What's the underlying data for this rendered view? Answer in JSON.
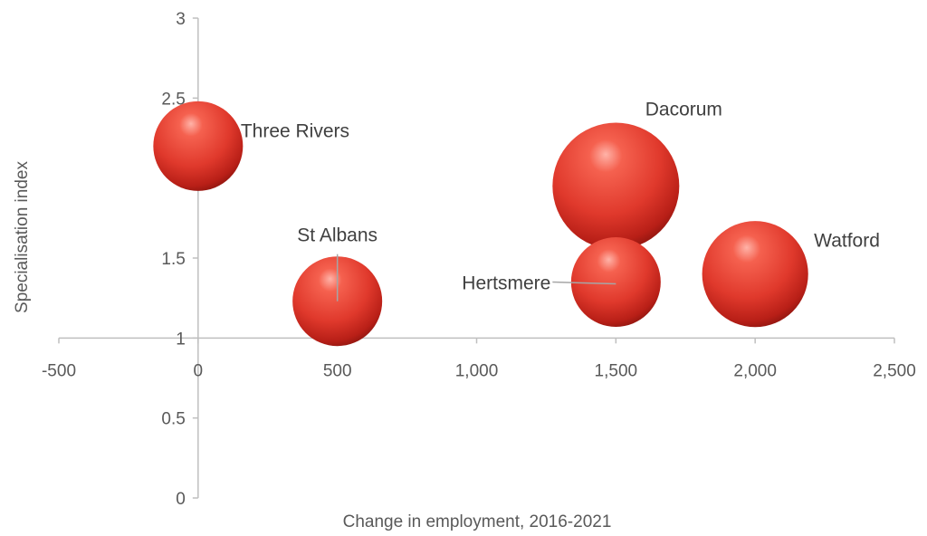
{
  "chart_data": {
    "type": "bubble",
    "xlabel": "Change in employment, 2016-2021",
    "ylabel": "Specialisation index",
    "xlim": [
      -500,
      2500
    ],
    "ylim": [
      0,
      3
    ],
    "x_ticks": [
      -500,
      0,
      500,
      1000,
      1500,
      2000,
      2500
    ],
    "x_tick_labels": [
      "-500",
      "0",
      "500",
      "1,000",
      "1,500",
      "2,000",
      "2,500"
    ],
    "y_ticks": [
      0,
      0.5,
      1,
      1.5,
      2,
      2.5,
      3
    ],
    "y_tick_labels": [
      "0",
      "0.5",
      "1",
      "1.5",
      "2",
      "2.5",
      "3"
    ],
    "x_axis_crosses_y": 1,
    "grid": false,
    "bubble_color": "#e8443a",
    "points": [
      {
        "label": "Three Rivers",
        "x": 0,
        "y": 2.2,
        "size": 0.5
      },
      {
        "label": "St Albans",
        "x": 500,
        "y": 1.23,
        "size": 0.5
      },
      {
        "label": "Dacorum",
        "x": 1500,
        "y": 1.95,
        "size": 1.0
      },
      {
        "label": "Hertsmere",
        "x": 1500,
        "y": 1.35,
        "size": 0.5
      },
      {
        "label": "Watford",
        "x": 2000,
        "y": 1.4,
        "size": 0.7
      }
    ]
  }
}
